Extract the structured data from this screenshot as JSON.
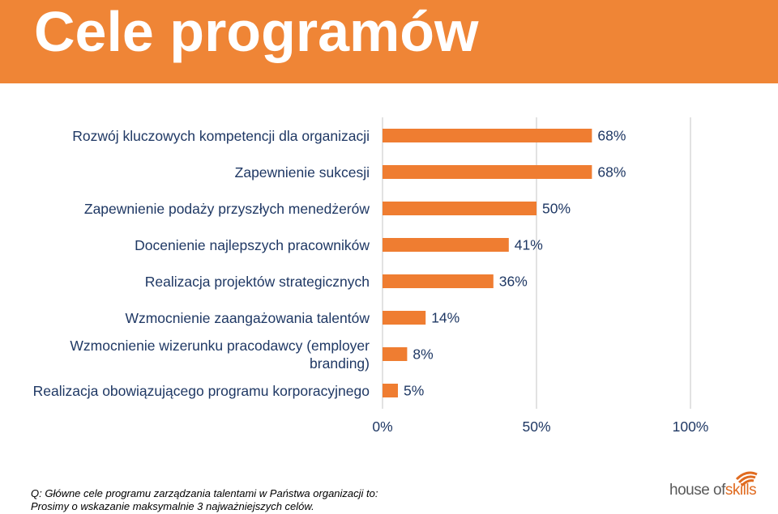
{
  "header": {
    "title": "Cele programów"
  },
  "colors": {
    "accent": "#ef8536",
    "bar": "#ef7d31",
    "label": "#1f3864",
    "grid": "#d9d9d9"
  },
  "chart_data": {
    "type": "bar",
    "orientation": "horizontal",
    "categories": [
      "Rozwój kluczowych kompetencji dla organizacji",
      "Zapewnienie sukcesji",
      "Zapewnienie podaży przyszłych menedżerów",
      "Docenienie najlepszych pracowników",
      "Realizacja projektów strategicznych",
      "Wzmocnienie zaangażowania talentów",
      "Wzmocnienie wizerunku pracodawcy (employer branding)",
      "Realizacja obowiązującego programu korporacyjnego"
    ],
    "values": [
      68,
      68,
      50,
      41,
      36,
      14,
      8,
      5
    ],
    "value_labels": [
      "68%",
      "68%",
      "50%",
      "41%",
      "36%",
      "14%",
      "8%",
      "5%"
    ],
    "xlim": [
      0,
      100
    ],
    "xticks": [
      "0%",
      "50%",
      "100%"
    ],
    "grid": true,
    "legend": "none"
  },
  "footnote": {
    "line1": "Q: Główne cele programu zarządzania talentami w Państwa organizacji to:",
    "line2": "Prosimy o wskazanie maksymalnie 3 najważniejszych celów."
  },
  "logo": {
    "part1": "house of",
    "part2": "skills",
    "icon": "house-of-skills-logo-icon"
  }
}
